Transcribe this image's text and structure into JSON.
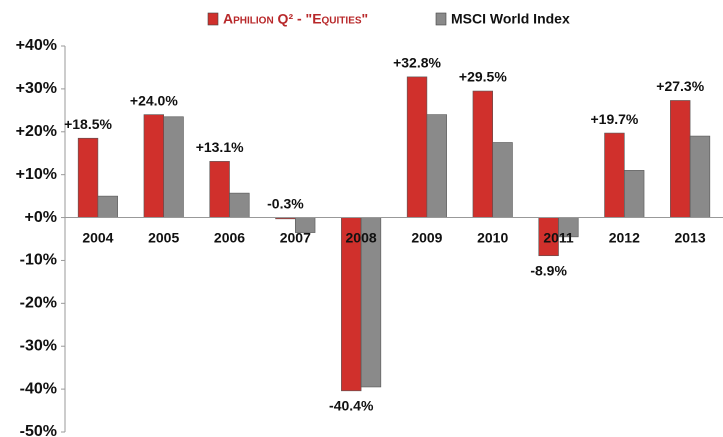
{
  "chart_data": {
    "type": "bar",
    "categories": [
      "2004",
      "2005",
      "2006",
      "2007",
      "2008",
      "2009",
      "2010",
      "2011",
      "2012",
      "2013"
    ],
    "series": [
      {
        "name": "Aphilion Q² - \"Equities\"",
        "color": "#d0302c",
        "values": [
          18.5,
          24.0,
          13.1,
          -0.3,
          -40.4,
          32.8,
          29.5,
          -8.9,
          19.7,
          27.3
        ],
        "value_labels": [
          "+18.5%",
          "+24.0%",
          "+13.1%",
          "-0.3%",
          "-40.4%",
          "+32.8%",
          "+29.5%",
          "-8.9%",
          "+19.7%",
          "+27.3%"
        ]
      },
      {
        "name": "MSCI World Index",
        "color": "#8a8a8a",
        "values": [
          5,
          23.5,
          5.7,
          -3.5,
          -39.5,
          24,
          17.5,
          -4.5,
          11,
          19
        ]
      }
    ],
    "ylim": [
      -50,
      40
    ],
    "yticks": [
      {
        "value": -50,
        "label": "-50%"
      },
      {
        "value": -40,
        "label": "-40%"
      },
      {
        "value": -30,
        "label": "-30%"
      },
      {
        "value": -20,
        "label": "-20%"
      },
      {
        "value": -10,
        "label": "-10%"
      },
      {
        "value": 0,
        "label": "+0%"
      },
      {
        "value": 10,
        "label": "+10%"
      },
      {
        "value": 20,
        "label": "+20%"
      },
      {
        "value": 30,
        "label": "+30%"
      },
      {
        "value": 40,
        "label": "+40%"
      }
    ],
    "legend": "top",
    "grid": false
  }
}
